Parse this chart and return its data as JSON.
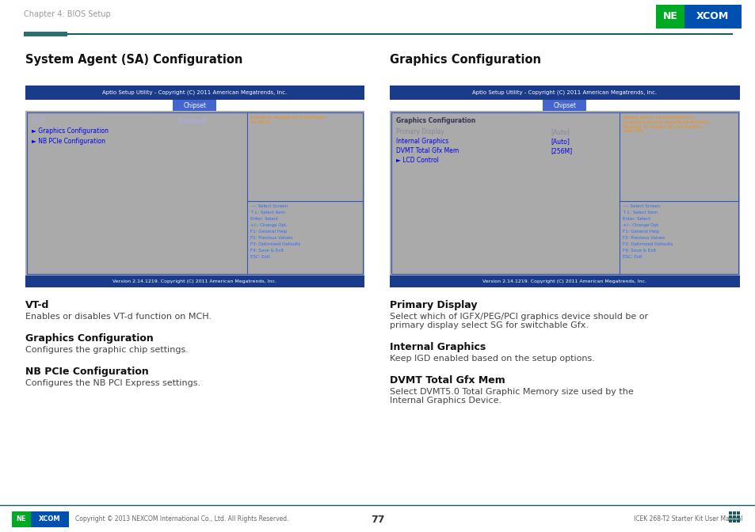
{
  "page_bg": "#ffffff",
  "header_text": "Chapter 4: BIOS Setup",
  "header_color": "#999999",
  "nexcom_bg": "#0050b0",
  "nexcom_green": "#00aa22",
  "left_section_title": "System Agent (SA) Configuration",
  "right_section_title": "Graphics Configuration",
  "bios_header_bg": "#1a3a8a",
  "bios_header_text": "Aptio Setup Utility - Copyright (C) 2011 American Megatrends, Inc.",
  "bios_tab_bg": "#4466cc",
  "bios_tab_text": "Chipset",
  "bios_body_bg": "#aaaaaa",
  "bios_footer_bg": "#1a3a8a",
  "bios_footer_text": "Version 2.14.1219. Copyright (C) 2011 American Megatrends, Inc.",
  "bios_inner_border": "#3355bb",
  "bios_highlight_text": "#3366ff",
  "bios_cyan_text": "#0000ee",
  "bios_help_text": "#ff8c00",
  "bios_key_text": "#3366ff",
  "left_bios_keys": [
    "---: Select Screen",
    "↑↓: Select Item",
    "Enter: Select",
    "+/-: Change Opt.",
    "F1: General Help",
    "F2: Previous Values",
    "F3: Optimized Defaults",
    "F4: Save & Exit",
    "ESC: Exit"
  ],
  "right_bios_keys": [
    "---: Select Screen",
    "↑↓: Select Item",
    "Enter: Select",
    "+/-: Change Opt.",
    "F1: General Help",
    "F2: Previous Values",
    "F3: Optimized Defaults",
    "F4: Save & Exit",
    "ESC: Exit"
  ],
  "descriptions_left": [
    {
      "title": "VT-d",
      "text": "Enables or disables VT-d function on MCH."
    },
    {
      "title": "Graphics Configuration",
      "text": "Configures the graphic chip settings."
    },
    {
      "title": "NB PCIe Configuration",
      "text": "Configures the NB PCI Express settings."
    }
  ],
  "descriptions_right": [
    {
      "title": "Primary Display",
      "text": "Select which of IGFX/PEG/PCI graphics device should be primary display or select SG for switchable Gfx."
    },
    {
      "title": "Internal Graphics",
      "text": "Keep IGD enabled based on the setup options."
    },
    {
      "title": "DVMT Total Gfx Mem",
      "text": "Select DVMT5.0 Total Graphic Memory size used by the Internal Graphics Device."
    }
  ],
  "divider_color": "#1a5c5c",
  "divider_block_color": "#2d6e6e",
  "footer_teal": "#1a5c5c",
  "footer_nexcom_green": "#00aa22",
  "footer_nexcom_blue": "#0050b0",
  "footer_center_text": "77",
  "footer_left_text": "Copyright © 2013 NEXCOM International Co., Ltd. All Rights Reserved.",
  "footer_right_text": "ICEK 268-T2 Starter Kit User Manual"
}
